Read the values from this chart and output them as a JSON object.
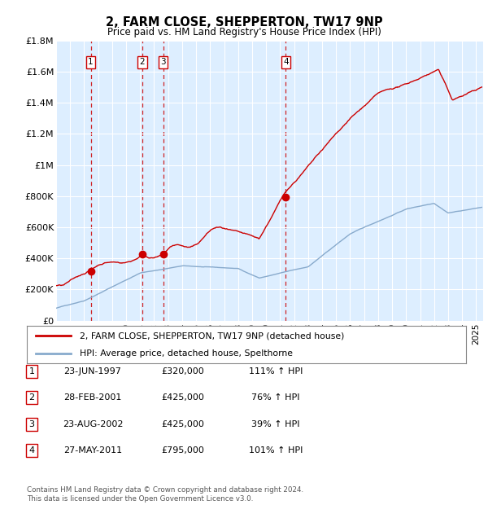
{
  "title": "2, FARM CLOSE, SHEPPERTON, TW17 9NP",
  "subtitle": "Price paid vs. HM Land Registry's House Price Index (HPI)",
  "legend_property": "2, FARM CLOSE, SHEPPERTON, TW17 9NP (detached house)",
  "legend_hpi": "HPI: Average price, detached house, Spelthorne",
  "footer": "Contains HM Land Registry data © Crown copyright and database right 2024.\nThis data is licensed under the Open Government Licence v3.0.",
  "sales": [
    {
      "num": 1,
      "date_str": "23-JUN-1997",
      "date_x": 1997.47,
      "price": 320000,
      "label": "£320,000",
      "pct": "111% ↑ HPI"
    },
    {
      "num": 2,
      "date_str": "28-FEB-2001",
      "date_x": 2001.16,
      "price": 425000,
      "label": "£425,000",
      "pct": "76% ↑ HPI"
    },
    {
      "num": 3,
      "date_str": "23-AUG-2002",
      "date_x": 2002.64,
      "price": 425000,
      "label": "£425,000",
      "pct": "39% ↑ HPI"
    },
    {
      "num": 4,
      "date_str": "27-MAY-2011",
      "date_x": 2011.41,
      "price": 795000,
      "label": "£795,000",
      "pct": "101% ↑ HPI"
    }
  ],
  "ylim": [
    0,
    1800000
  ],
  "xlim": [
    1995.0,
    2025.5
  ],
  "yticks": [
    0,
    200000,
    400000,
    600000,
    800000,
    1000000,
    1200000,
    1400000,
    1600000,
    1800000
  ],
  "ytick_labels": [
    "£0",
    "£200K",
    "£400K",
    "£600K",
    "£800K",
    "£1M",
    "£1.2M",
    "£1.4M",
    "£1.6M",
    "£1.8M"
  ],
  "property_color": "#cc0000",
  "hpi_color": "#88aacc",
  "bg_color": "#ddeeff",
  "grid_color": "#ffffff",
  "dashed_color": "#cc0000"
}
